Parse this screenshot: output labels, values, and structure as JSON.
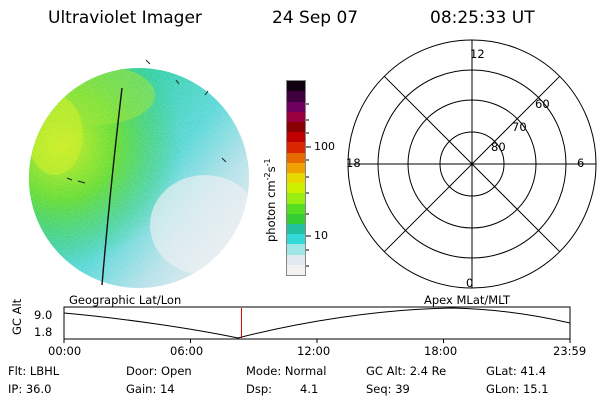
{
  "header": {
    "title": "Ultraviolet Imager",
    "date": "24 Sep 07",
    "time": "08:25:33 UT"
  },
  "colorbar": {
    "unit_label": "photon cm",
    "unit_exp1": "-2",
    "unit_mid": "s",
    "unit_exp2": "-1",
    "ticks": [
      "100",
      "10"
    ],
    "colors": [
      "#f2f2f2",
      "#e0e8f0",
      "#9fe6e6",
      "#33d9d9",
      "#22c0a0",
      "#33cc33",
      "#55dd22",
      "#99ee11",
      "#ccf000",
      "#e6d800",
      "#f0a000",
      "#e66a00",
      "#d92600",
      "#c00000",
      "#8a0000",
      "#9a0040",
      "#700060",
      "#400040",
      "#100010"
    ]
  },
  "polar_plot": {
    "mlt_labels": {
      "top": "12",
      "left": "18",
      "right": "6",
      "bottom": "0"
    },
    "lat_labels": [
      "60",
      "70",
      "80"
    ]
  },
  "timeline": {
    "left_title": "Geographic Lat/Lon",
    "right_title": "Apex MLat/MLT",
    "ylabel": "GC Alt",
    "y_top": "9.0",
    "y_bottom": "1.8",
    "x_ticks": [
      "00:00",
      "06:00",
      "12:00",
      "18:00",
      "23:59"
    ],
    "cursor_fraction": 0.3507,
    "cursor_color": "#cc0000"
  },
  "info": {
    "flt": "Flt: LBHL",
    "ip": "IP: 36.0",
    "door": "Door: Open",
    "gain": "Gain: 14",
    "mode": "Mode: Normal",
    "dsp_label": "Dsp:",
    "dsp_value": "4.1",
    "gcalt": "GC Alt: 2.4 Re",
    "seq": "Seq: 39",
    "glat": "GLat:  41.4",
    "glon": "GLon:  15.1"
  }
}
